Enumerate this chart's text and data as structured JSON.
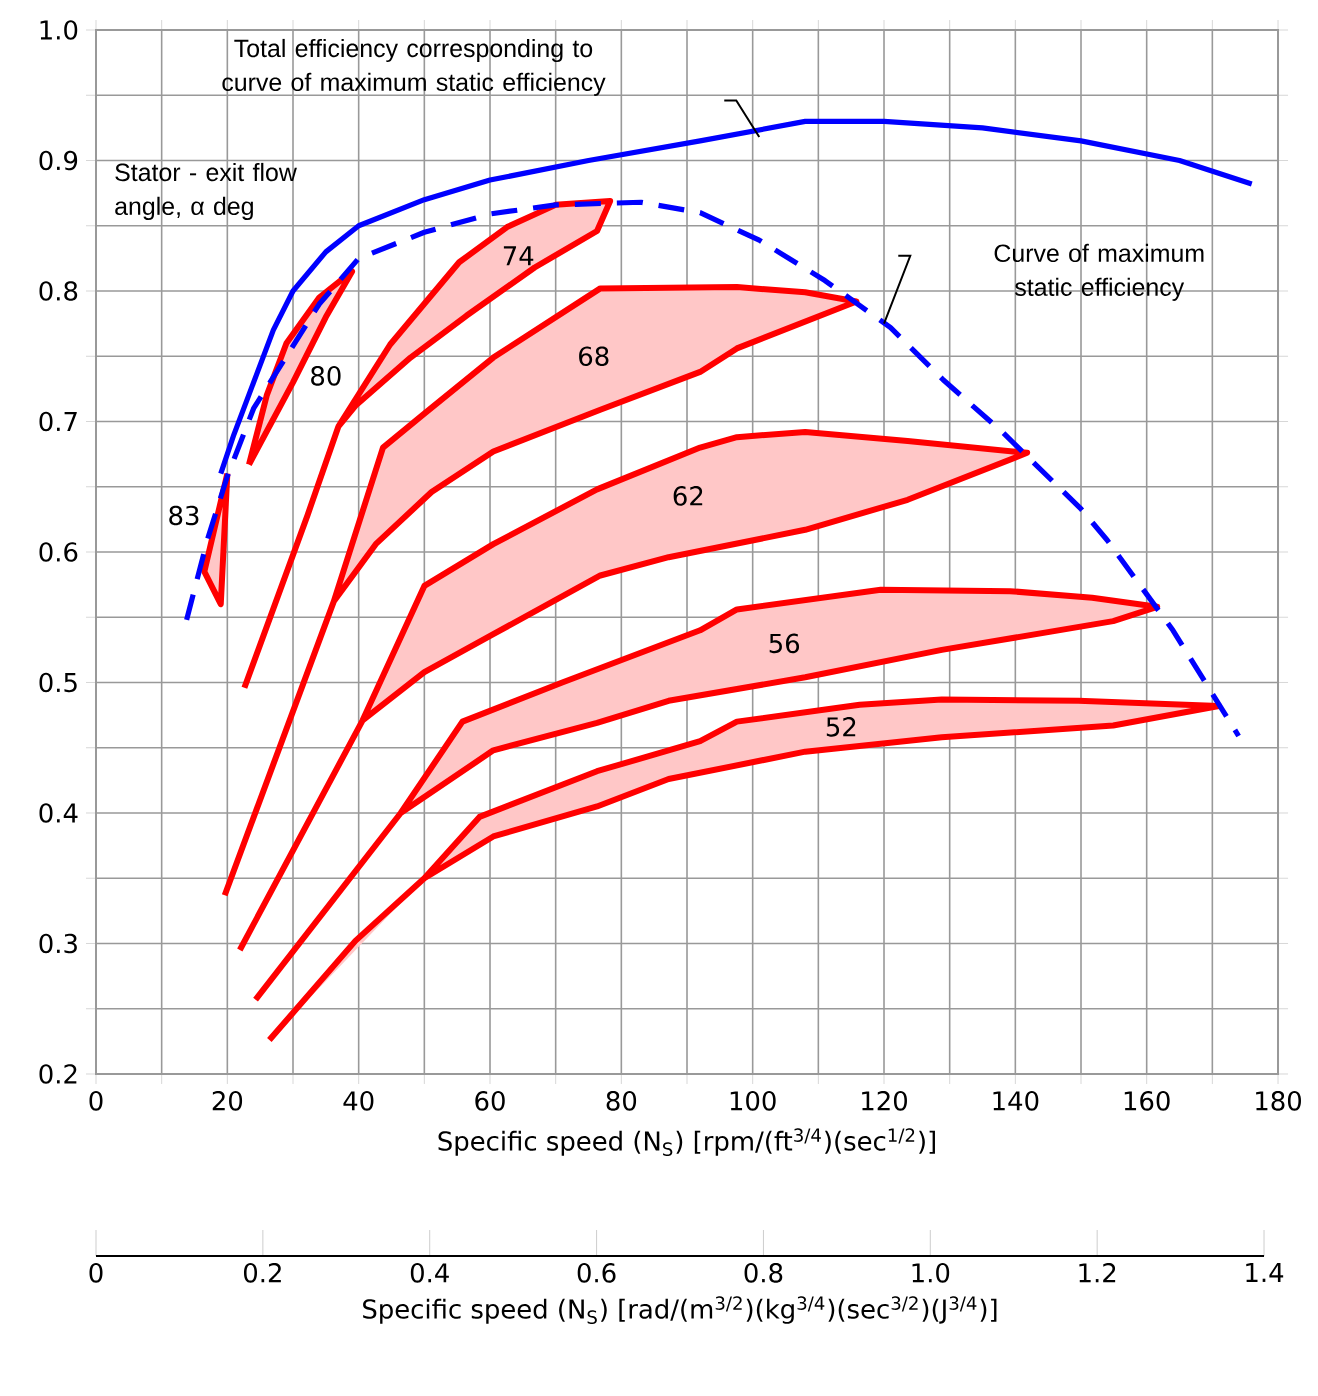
{
  "chart_data": {
    "type": "line",
    "xlabel": "Specific speed (N$_{S}$) [rpm/(ft$^{3/4}$)(sec$^{1/2}$)]",
    "x2label": "Specific speed (N$_{S}$) [rad/(m$^{3/2}$)(kg$^{3/4}$)(sec$^{3/2}$)(J$^{3/4}$)]",
    "xlim": [
      0,
      180
    ],
    "xticks": [
      0,
      {
        "value": 10,
        "label": null
      },
      20,
      {
        "value": 30,
        "label": null
      },
      40,
      {
        "value": 50,
        "label": null
      },
      60,
      {
        "value": 70,
        "label": null
      },
      80,
      {
        "value": 90,
        "label": null
      },
      100,
      {
        "value": 110,
        "label": null
      },
      120,
      {
        "value": 130,
        "label": null
      },
      140,
      {
        "value": 150,
        "label": null
      },
      160,
      {
        "value": 170,
        "label": null
      },
      180
    ],
    "ylim": [
      0.2,
      1.0
    ],
    "yticks": [
      0.2,
      {
        "value": 0.25,
        "label": null
      },
      0.3,
      {
        "value": 0.35,
        "label": null
      },
      0.4,
      {
        "value": 0.45,
        "label": null
      },
      0.5,
      {
        "value": 0.55,
        "label": null
      },
      0.6,
      {
        "value": 0.65,
        "label": null
      },
      0.7,
      {
        "value": 0.75,
        "label": null
      },
      0.8,
      {
        "value": 0.85,
        "label": null
      },
      0.9,
      {
        "value": 0.95,
        "label": null
      },
      {
        "value": 1.0,
        "label": "1.0"
      }
    ],
    "x2lim": [
      0,
      1.4
    ],
    "x2ticks": [
      0,
      0.2,
      0.4,
      0.6,
      0.8,
      {
        "value": 1.0,
        "label": "1.0"
      },
      1.2,
      1.4
    ],
    "grid": true,
    "series": [
      {
        "color": "#0000ff",
        "line_style": "solid",
        "x": [
          19,
          21,
          24,
          27,
          30,
          35,
          40,
          50,
          60,
          75,
          92,
          108,
          120,
          135,
          150,
          165,
          176
        ],
        "values": [
          0.66,
          0.69,
          0.73,
          0.77,
          0.8,
          0.83,
          0.85,
          0.87,
          0.885,
          0.9,
          0.915,
          0.93,
          0.93,
          0.925,
          0.915,
          0.9,
          0.882
        ]
      },
      {
        "color": "#0000ff",
        "line_style": "dashed",
        "x": [
          13.8,
          17,
          20,
          24,
          29,
          34,
          40,
          50,
          60,
          70,
          83,
          92,
          101,
          111,
          121,
          129,
          138,
          150,
          154,
          164,
          174
        ],
        "values": [
          0.548,
          0.61,
          0.658,
          0.71,
          0.75,
          0.79,
          0.825,
          0.845,
          0.859,
          0.866,
          0.868,
          0.86,
          0.839,
          0.808,
          0.772,
          0.732,
          0.692,
          0.633,
          0.609,
          0.54,
          0.459
        ]
      },
      {
        "type": "area",
        "color": "#ff0000",
        "x": [
          20,
          16.5,
          19,
          20
        ],
        "values": [
          0.66,
          0.585,
          0.56,
          0.66
        ]
      },
      {
        "type": "area",
        "color": "#ff0000",
        "x": [
          23.3,
          26,
          29,
          34,
          39,
          35,
          30,
          23.3
        ],
        "values": [
          0.667,
          0.72,
          0.76,
          0.795,
          0.815,
          0.78,
          0.73,
          0.667
        ]
      },
      {
        "type": "area",
        "color": "#ff0000",
        "x": [
          36.9,
          44.8,
          55.3,
          62.6,
          70,
          78.3,
          76.3,
          66.8,
          56.4,
          47.9,
          39.5,
          36.9,
          32.2,
          22.6
        ],
        "values": [
          0.696,
          0.759,
          0.822,
          0.849,
          0.866,
          0.869,
          0.846,
          0.818,
          0.781,
          0.749,
          0.712,
          0.696,
          0.628,
          0.496
        ]
      },
      {
        "type": "area",
        "color": "#ff0000",
        "x": [
          36.2,
          43.7,
          50,
          60.5,
          76.8,
          97.6,
          108,
          115.8,
          97.6,
          92,
          76.8,
          60.5,
          51.1,
          42.6,
          36.2,
          19.6
        ],
        "values": [
          0.562,
          0.68,
          0.706,
          0.749,
          0.802,
          0.803,
          0.799,
          0.792,
          0.756,
          0.738,
          0.709,
          0.677,
          0.646,
          0.606,
          0.562,
          0.337
        ]
      },
      {
        "type": "area",
        "color": "#ff0000",
        "x": [
          40.6,
          50,
          60.5,
          76.3,
          92,
          97.6,
          108,
          123.6,
          141.8,
          123.6,
          108,
          87.2,
          76.8,
          60.5,
          50,
          40.6,
          21.9
        ],
        "values": [
          0.471,
          0.574,
          0.606,
          0.648,
          0.68,
          0.688,
          0.692,
          0.685,
          0.676,
          0.64,
          0.617,
          0.596,
          0.582,
          0.537,
          0.508,
          0.471,
          0.295
        ]
      },
      {
        "type": "area",
        "color": "#ff0000",
        "x": [
          46.4,
          55.8,
          71,
          92,
          97.6,
          119.5,
          139.2,
          151.7,
          161.6,
          154.9,
          128.8,
          108,
          87.2,
          76.3,
          60.5,
          46.4,
          24.3
        ],
        "values": [
          0.4,
          0.47,
          0.5,
          0.54,
          0.556,
          0.571,
          0.57,
          0.565,
          0.558,
          0.547,
          0.525,
          0.504,
          0.486,
          0.469,
          0.448,
          0.4,
          0.257
        ]
      },
      {
        "type": "area",
        "color": "#ff0000",
        "x": [
          50,
          58.4,
          76.3,
          92,
          97.6,
          116.3,
          128.8,
          149.6,
          171,
          154.9,
          128.8,
          108,
          87.2,
          76.3,
          60.5,
          50,
          39.5,
          26.4
        ],
        "values": [
          0.35,
          0.397,
          0.432,
          0.455,
          0.47,
          0.483,
          0.487,
          0.486,
          0.482,
          0.467,
          0.458,
          0.447,
          0.426,
          0.405,
          0.382,
          0.35,
          0.302,
          0.226
        ]
      }
    ],
    "annotations": [
      "Total efficiency corresponding to curve of maximum static efficiency",
      "Curve of maximum static efficiency",
      "Stator - exit flow angle, α deg",
      "83",
      "80",
      "74",
      "68",
      "62",
      "56",
      "52"
    ]
  }
}
